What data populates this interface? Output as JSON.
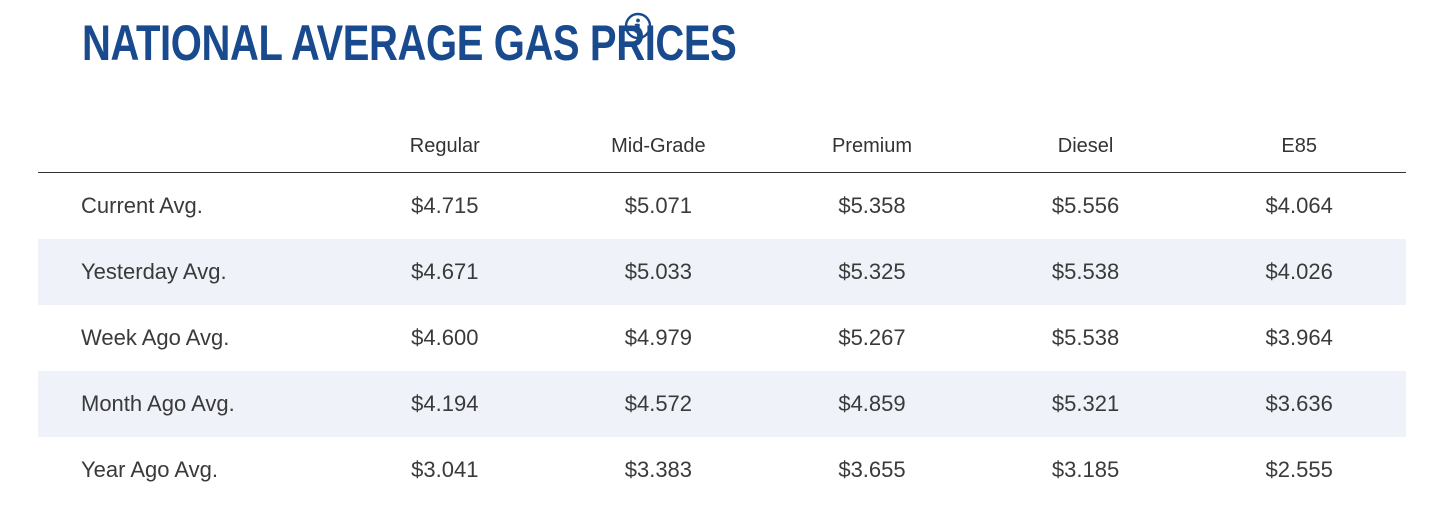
{
  "header": {
    "title": "NATIONAL AVERAGE GAS PRICES",
    "info_icon": "info-circle-icon",
    "title_color": "#1a4a8e"
  },
  "table": {
    "columns": [
      "Regular",
      "Mid-Grade",
      "Premium",
      "Diesel",
      "E85"
    ],
    "stripe_color": "#eff3f9",
    "rows": [
      {
        "label": "Current Avg.",
        "values": [
          "$4.715",
          "$5.071",
          "$5.358",
          "$5.556",
          "$4.064"
        ]
      },
      {
        "label": "Yesterday Avg.",
        "values": [
          "$4.671",
          "$5.033",
          "$5.325",
          "$5.538",
          "$4.026"
        ]
      },
      {
        "label": "Week Ago Avg.",
        "values": [
          "$4.600",
          "$4.979",
          "$5.267",
          "$5.538",
          "$3.964"
        ]
      },
      {
        "label": "Month Ago Avg.",
        "values": [
          "$4.194",
          "$4.572",
          "$4.859",
          "$5.321",
          "$3.636"
        ]
      },
      {
        "label": "Year Ago Avg.",
        "values": [
          "$3.041",
          "$3.383",
          "$3.655",
          "$3.185",
          "$2.555"
        ]
      }
    ]
  }
}
